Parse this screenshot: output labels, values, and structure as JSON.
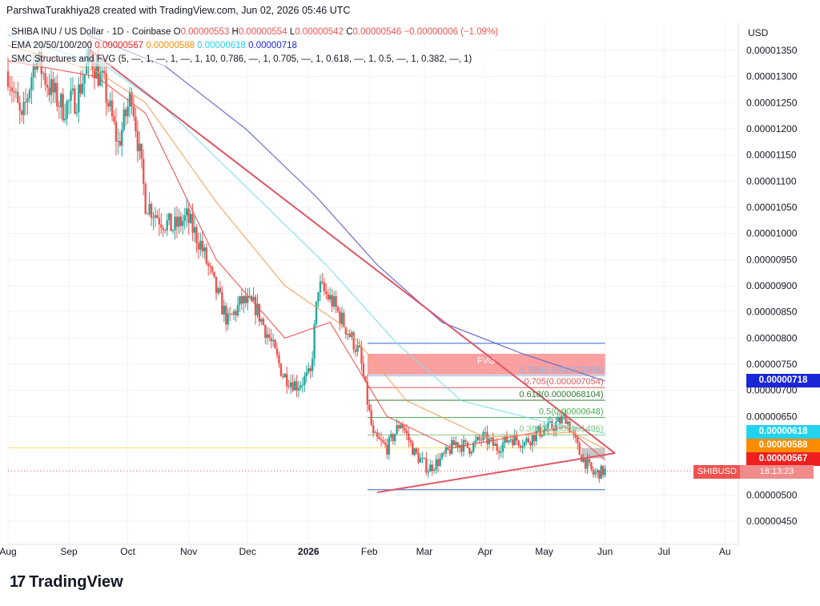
{
  "caption": "ParshwaTurakhiya28 created with TradingView.com, Jun 02, 2026 05:46 UTC",
  "legend": {
    "symbol": "SHIBA INU / US Dollar · 1D · Coinbase",
    "o_label": "O",
    "o_value": "0.00000553",
    "h_label": "H",
    "h_value": "0.00000554",
    "l_label": "L",
    "l_value": "0.00000542",
    "c_label": "C",
    "c_value": "0.00000546",
    "change": "−0.00000006 (−1.09%)",
    "ema_label": "EMA 20/50/100/200",
    "ema20": "0.00000567",
    "ema50": "0.00000588",
    "ema100": "0.00000618",
    "ema200": "0.00000718",
    "smc_label": "SMC Structures and FVG (5, —, 1, —, 1, —, 1, 10, 0.786, —, 1, 0.705, —, 1, 0.618, —, 1, 0.5, —, 1, 0.382, —, 1)"
  },
  "axis": {
    "currency": "USD",
    "y_ticks": [
      "0.00001350",
      "0.00001300",
      "0.00001250",
      "0.00001200",
      "0.00001150",
      "0.00001100",
      "0.00001050",
      "0.00001000",
      "0.00000950",
      "0.00000900",
      "0.00000850",
      "0.00000800",
      "0.00000750",
      "0.00000700",
      "0.00000650",
      "0.00000500",
      "0.00000450"
    ],
    "x_ticks": [
      "Aug",
      "Sep",
      "Oct",
      "Nov",
      "Dec",
      "2026",
      "Feb",
      "Mar",
      "Apr",
      "May",
      "Jun",
      "Jul",
      "Au"
    ]
  },
  "price_tags": [
    {
      "text": "0.00000718",
      "color": "#1a27d6"
    },
    {
      "text": "0.00000618",
      "color": "#22d3ee"
    },
    {
      "text": "0.00000588",
      "color": "#fb8c00"
    },
    {
      "text": "0.00000567",
      "color": "#ef1f1f"
    }
  ],
  "symbol_tag": {
    "name": "SHIBUSD",
    "countdown": "18:13:23",
    "color": "#ef5350"
  },
  "fib_labels": [
    {
      "text": "0.786(0.0000072808)",
      "color": "#81b4e8"
    },
    {
      "text": "0.705(0.000007054)",
      "color": "#e05555"
    },
    {
      "text": "0.618(0.0000068104)",
      "color": "#2e7d32"
    },
    {
      "text": "0.5(0.00000648)",
      "color": "#4caf50"
    },
    {
      "text": "0.382(0.0000061496)",
      "color": "#81c784"
    }
  ],
  "fvg_label": "FVG",
  "brand": "TradingView",
  "chart_data": {
    "type": "candlestick",
    "title": "SHIBA INU / US Dollar · 1D · Coinbase",
    "xlabel": "",
    "ylabel": "USD",
    "ylim": [
      4.2e-06,
      1.39e-05
    ],
    "x_range": [
      "2025-08-01",
      "2026-08-05"
    ],
    "grid": true,
    "legend_position": "top-left",
    "ohlc_last": {
      "open": 5.53e-06,
      "high": 5.54e-06,
      "low": 5.42e-06,
      "close": 5.46e-06
    },
    "close_path": [
      {
        "date": "2025-08-01",
        "close": 1.31e-05
      },
      {
        "date": "2025-08-08",
        "close": 1.21e-05
      },
      {
        "date": "2025-08-15",
        "close": 1.34e-05
      },
      {
        "date": "2025-08-22",
        "close": 1.28e-05
      },
      {
        "date": "2025-08-29",
        "close": 1.24e-05
      },
      {
        "date": "2025-09-05",
        "close": 1.26e-05
      },
      {
        "date": "2025-09-12",
        "close": 1.34e-05
      },
      {
        "date": "2025-09-19",
        "close": 1.28e-05
      },
      {
        "date": "2025-09-26",
        "close": 1.17e-05
      },
      {
        "date": "2025-10-03",
        "close": 1.27e-05
      },
      {
        "date": "2025-10-10",
        "close": 1.06e-05
      },
      {
        "date": "2025-10-17",
        "close": 1.03e-05
      },
      {
        "date": "2025-10-24",
        "close": 1.01e-05
      },
      {
        "date": "2025-10-31",
        "close": 1.03e-05
      },
      {
        "date": "2025-11-07",
        "close": 9.8e-06
      },
      {
        "date": "2025-11-14",
        "close": 9e-06
      },
      {
        "date": "2025-11-21",
        "close": 8.3e-06
      },
      {
        "date": "2025-11-28",
        "close": 8.7e-06
      },
      {
        "date": "2025-12-05",
        "close": 8.6e-06
      },
      {
        "date": "2025-12-12",
        "close": 8e-06
      },
      {
        "date": "2025-12-19",
        "close": 7.3e-06
      },
      {
        "date": "2025-12-26",
        "close": 7.1e-06
      },
      {
        "date": "2026-01-02",
        "close": 7.3e-06
      },
      {
        "date": "2026-01-06",
        "close": 9e-06
      },
      {
        "date": "2026-01-13",
        "close": 8.7e-06
      },
      {
        "date": "2026-01-20",
        "close": 8.2e-06
      },
      {
        "date": "2026-01-27",
        "close": 7.7e-06
      },
      {
        "date": "2026-02-03",
        "close": 6.1e-06
      },
      {
        "date": "2026-02-10",
        "close": 5.9e-06
      },
      {
        "date": "2026-02-17",
        "close": 6.4e-06
      },
      {
        "date": "2026-02-24",
        "close": 5.8e-06
      },
      {
        "date": "2026-03-03",
        "close": 5.5e-06
      },
      {
        "date": "2026-03-10",
        "close": 5.7e-06
      },
      {
        "date": "2026-03-17",
        "close": 6e-06
      },
      {
        "date": "2026-03-24",
        "close": 5.9e-06
      },
      {
        "date": "2026-03-31",
        "close": 6.1e-06
      },
      {
        "date": "2026-04-07",
        "close": 5.9e-06
      },
      {
        "date": "2026-04-14",
        "close": 6.1e-06
      },
      {
        "date": "2026-04-21",
        "close": 6e-06
      },
      {
        "date": "2026-04-28",
        "close": 6.2e-06
      },
      {
        "date": "2026-05-05",
        "close": 6.3e-06
      },
      {
        "date": "2026-05-12",
        "close": 6.5e-06
      },
      {
        "date": "2026-05-19",
        "close": 5.8e-06
      },
      {
        "date": "2026-05-26",
        "close": 5.4e-06
      },
      {
        "date": "2026-06-01",
        "close": 5.46e-06
      }
    ],
    "ema": [
      {
        "name": "EMA 20",
        "color": "#ef5350",
        "last": 5.67e-06,
        "points": [
          {
            "date": "2025-08-01",
            "v": 1.33e-05
          },
          {
            "date": "2025-09-15",
            "v": 1.3e-05
          },
          {
            "date": "2025-10-10",
            "v": 1.23e-05
          },
          {
            "date": "2025-11-15",
            "v": 9.5e-06
          },
          {
            "date": "2025-12-20",
            "v": 8e-06
          },
          {
            "date": "2026-01-12",
            "v": 8.3e-06
          },
          {
            "date": "2026-02-10",
            "v": 6.5e-06
          },
          {
            "date": "2026-03-15",
            "v": 5.9e-06
          },
          {
            "date": "2026-05-12",
            "v": 6.3e-06
          },
          {
            "date": "2026-06-01",
            "v": 5.67e-06
          }
        ]
      },
      {
        "name": "EMA 50",
        "color": "#f5a25d",
        "last": 5.88e-06,
        "points": [
          {
            "date": "2025-08-01",
            "v": 1.36e-05
          },
          {
            "date": "2025-09-15",
            "v": 1.31e-05
          },
          {
            "date": "2025-10-10",
            "v": 1.25e-05
          },
          {
            "date": "2025-11-15",
            "v": 1.06e-05
          },
          {
            "date": "2025-12-20",
            "v": 9e-06
          },
          {
            "date": "2026-01-20",
            "v": 8.2e-06
          },
          {
            "date": "2026-02-20",
            "v": 6.8e-06
          },
          {
            "date": "2026-04-01",
            "v": 6.1e-06
          },
          {
            "date": "2026-05-15",
            "v": 6.2e-06
          },
          {
            "date": "2026-06-01",
            "v": 5.88e-06
          }
        ]
      },
      {
        "name": "EMA 100",
        "color": "#80deea",
        "last": 6.18e-06,
        "points": [
          {
            "date": "2025-08-01",
            "v": 1.38e-05
          },
          {
            "date": "2025-09-20",
            "v": 1.32e-05
          },
          {
            "date": "2025-10-20",
            "v": 1.24e-05
          },
          {
            "date": "2025-11-30",
            "v": 1.09e-05
          },
          {
            "date": "2026-01-10",
            "v": 9.4e-06
          },
          {
            "date": "2026-02-15",
            "v": 7.9e-06
          },
          {
            "date": "2026-03-20",
            "v": 6.8e-06
          },
          {
            "date": "2026-05-01",
            "v": 6.4e-06
          },
          {
            "date": "2026-06-01",
            "v": 6.18e-06
          }
        ]
      },
      {
        "name": "EMA 200",
        "color": "#5c5fc4",
        "last": 7.18e-06,
        "points": [
          {
            "date": "2025-09-10",
            "v": 1.38e-05
          },
          {
            "date": "2025-10-20",
            "v": 1.32e-05
          },
          {
            "date": "2025-11-30",
            "v": 1.2e-05
          },
          {
            "date": "2026-01-05",
            "v": 1.07e-05
          },
          {
            "date": "2026-02-05",
            "v": 9.4e-06
          },
          {
            "date": "2026-03-10",
            "v": 8.3e-06
          },
          {
            "date": "2026-04-20",
            "v": 7.7e-06
          },
          {
            "date": "2026-06-01",
            "v": 7.18e-06
          }
        ]
      }
    ],
    "trendlines": [
      {
        "name": "descending-resistance",
        "color": "#e05566",
        "from": {
          "date": "2025-09-12",
          "v": 1.35e-05
        },
        "to": {
          "date": "2026-06-06",
          "v": 5.8e-06
        }
      },
      {
        "name": "ascending-support",
        "color": "#e05566",
        "from": {
          "date": "2026-02-05",
          "v": 5.05e-06
        },
        "to": {
          "date": "2026-06-06",
          "v": 5.8e-06
        }
      }
    ],
    "fib_levels": [
      {
        "ratio": 0.786,
        "value": 7.2808e-06
      },
      {
        "ratio": 0.705,
        "value": 7.054e-06
      },
      {
        "ratio": 0.618,
        "value": 6.8104e-06
      },
      {
        "ratio": 0.5,
        "value": 6.48e-06
      },
      {
        "ratio": 0.382,
        "value": 6.1496e-06
      }
    ],
    "range_box": {
      "top": 7.9e-06,
      "bottom": 5.1e-06,
      "from": "2026-01-31",
      "to": "2026-06-01"
    },
    "fvg_zone": {
      "top": 7.7e-06,
      "bottom": 7.3e-06,
      "from": "2026-01-31",
      "to": "2026-06-01"
    },
    "horizontal_levels": [
      {
        "name": "yellow-level",
        "value": 5.9e-06,
        "color": "#f7e26b"
      },
      {
        "name": "last-price",
        "value": 5.46e-06,
        "color": "#ef5350"
      }
    ]
  }
}
